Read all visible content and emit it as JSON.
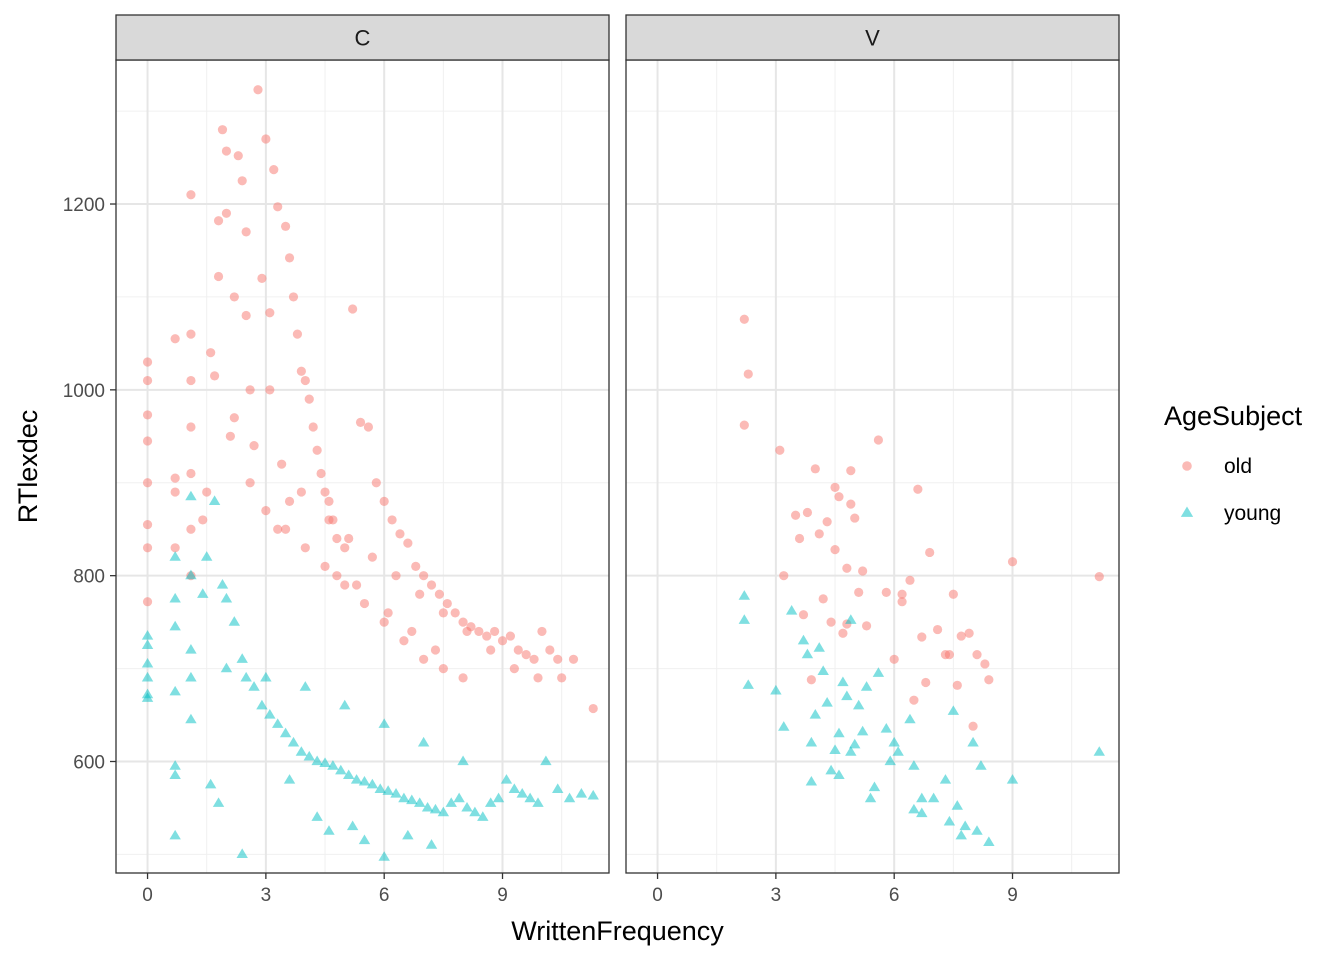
{
  "chart_data": {
    "type": "scatter",
    "xlabel": "WrittenFrequency",
    "ylabel": "RTlexdec",
    "facets": [
      "C",
      "V"
    ],
    "x_range": [
      -0.8,
      11.7
    ],
    "y_range": [
      480,
      1355
    ],
    "x_ticks": [
      0,
      3,
      6,
      9
    ],
    "y_ticks": [
      600,
      800,
      1000,
      1200
    ],
    "legend": {
      "title": "AgeSubject",
      "entries": [
        {
          "label": "old",
          "color": "#F8766D",
          "shape": "circle"
        },
        {
          "label": "young",
          "color": "#00BFC4",
          "shape": "triangle"
        }
      ],
      "position": "right"
    },
    "series": [
      {
        "name": "old",
        "facet": "C",
        "x": [
          0,
          0,
          0,
          0,
          0,
          0,
          0,
          0,
          0.7,
          0.7,
          0.7,
          0.7,
          1.1,
          1.1,
          1.1,
          1.1,
          1.1,
          1.1,
          1.1,
          1.4,
          1.6,
          1.7,
          1.8,
          1.8,
          1.9,
          2,
          2,
          2.2,
          2.3,
          2.4,
          2.5,
          2.5,
          2.6,
          2.8,
          2.9,
          3,
          3.1,
          3.1,
          3.2,
          3.3,
          3.5,
          3.6,
          3.7,
          3.8,
          3.9,
          4,
          4.1,
          4.2,
          4.3,
          4.4,
          4.5,
          4.6,
          4.7,
          4.8,
          5,
          5.2,
          5.4,
          5.6,
          5.8,
          6,
          6.2,
          6.4,
          6.6,
          6.8,
          7,
          7.2,
          7.4,
          7.6,
          7.8,
          8,
          8.2,
          8.4,
          8.6,
          8.8,
          9,
          9.2,
          9.4,
          9.6,
          9.8,
          10,
          10.2,
          10.4,
          10.5,
          10.8,
          11.3,
          1.5,
          2.2,
          2.7,
          3.4,
          3.9,
          4.6,
          5.1,
          5.7,
          6.3,
          6.9,
          7.5,
          8.1,
          8.7,
          9.3,
          9.9,
          2.6,
          3.0,
          3.5,
          4.0,
          4.5,
          5.0,
          5.5,
          6.0,
          6.5,
          7.0,
          7.5,
          8.0,
          3.3,
          4.8,
          6.1,
          7.3,
          2.1,
          3.6,
          5.3,
          6.7
        ],
        "y": [
          1030,
          1010,
          973,
          945,
          900,
          855,
          830,
          772,
          1055,
          905,
          890,
          830,
          1210,
          1060,
          1010,
          960,
          910,
          850,
          800,
          860,
          1040,
          1015,
          1122,
          1182,
          1280,
          1257,
          1190,
          1100,
          1252,
          1225,
          1170,
          1080,
          1000,
          1323,
          1120,
          1270,
          1083,
          1000,
          1237,
          1197,
          1176,
          1142,
          1100,
          1060,
          1020,
          1010,
          990,
          960,
          935,
          910,
          890,
          880,
          860,
          840,
          830,
          1087,
          965,
          960,
          900,
          880,
          860,
          845,
          835,
          810,
          800,
          790,
          780,
          770,
          760,
          750,
          745,
          740,
          735,
          740,
          730,
          735,
          720,
          715,
          710,
          740,
          720,
          710,
          690,
          710,
          657,
          890,
          970,
          940,
          920,
          890,
          860,
          840,
          820,
          800,
          780,
          760,
          740,
          720,
          700,
          690,
          900,
          870,
          850,
          830,
          810,
          790,
          770,
          750,
          730,
          710,
          700,
          690,
          850,
          800,
          760,
          720,
          950,
          880,
          790,
          740
        ]
      },
      {
        "name": "young",
        "facet": "C",
        "x": [
          0,
          0,
          0,
          0,
          0,
          0,
          0.7,
          0.7,
          0.7,
          0.7,
          0.7,
          0.7,
          1.1,
          1.1,
          1.1,
          1.1,
          1.1,
          1.4,
          1.5,
          1.7,
          1.9,
          2,
          2.2,
          2.4,
          2.5,
          2.7,
          2.9,
          3.1,
          3.3,
          3.5,
          3.7,
          3.9,
          4.1,
          4.3,
          4.5,
          4.7,
          4.9,
          5.1,
          5.3,
          5.5,
          5.7,
          5.9,
          6.1,
          6.3,
          6.5,
          6.7,
          6.9,
          7.1,
          7.3,
          7.5,
          7.7,
          7.9,
          8.1,
          8.3,
          8.5,
          8.7,
          8.9,
          9.1,
          9.3,
          9.5,
          9.7,
          9.9,
          10.1,
          10.4,
          10.7,
          11.0,
          11.3,
          2.4,
          1.8,
          1.6,
          0.7,
          2.0,
          3.0,
          4.0,
          5.0,
          6.0,
          7.0,
          8.0,
          5.2,
          6.0,
          7.2,
          4.3,
          3.6,
          6.6,
          5.5,
          4.6
        ],
        "y": [
          735,
          725,
          705,
          690,
          672,
          668,
          820,
          775,
          745,
          675,
          595,
          585,
          885,
          800,
          720,
          690,
          645,
          780,
          820,
          880,
          790,
          775,
          750,
          710,
          690,
          680,
          660,
          650,
          640,
          630,
          620,
          610,
          605,
          600,
          598,
          595,
          590,
          585,
          580,
          578,
          575,
          570,
          568,
          565,
          560,
          558,
          555,
          550,
          548,
          545,
          555,
          560,
          550,
          545,
          540,
          555,
          560,
          580,
          570,
          565,
          560,
          555,
          600,
          570,
          560,
          565,
          563,
          500,
          555,
          575,
          520,
          700,
          690,
          680,
          660,
          640,
          620,
          600,
          530,
          497,
          510,
          540,
          580,
          520,
          515,
          525
        ]
      },
      {
        "name": "old",
        "facet": "V",
        "x": [
          2.2,
          2.2,
          2.3,
          3.1,
          3.2,
          3.5,
          3.6,
          3.7,
          3.8,
          4,
          4.1,
          4.2,
          4.3,
          4.4,
          4.5,
          4.6,
          4.7,
          4.8,
          4.9,
          4.9,
          5.1,
          5.2,
          5.6,
          5.8,
          6,
          6.2,
          6.4,
          6.5,
          6.6,
          6.8,
          6.9,
          7.3,
          7.5,
          7.6,
          7.7,
          7.9,
          8.1,
          8.3,
          8.4,
          9,
          11.2,
          4.5,
          5.0,
          6.2,
          7.1,
          3.9,
          5.3,
          6.7,
          7.4,
          8.0,
          4.8
        ],
        "y": [
          1076,
          962,
          1017,
          935,
          800,
          865,
          840,
          758,
          868,
          915,
          845,
          775,
          858,
          750,
          895,
          885,
          738,
          808,
          913,
          877,
          782,
          805,
          946,
          782,
          710,
          780,
          795,
          666,
          893,
          685,
          825,
          715,
          780,
          682,
          735,
          738,
          715,
          705,
          688,
          815,
          799,
          828,
          862,
          772,
          742,
          688,
          746,
          734,
          715,
          638,
          748
        ]
      },
      {
        "name": "young",
        "facet": "V",
        "x": [
          2.2,
          2.2,
          2.3,
          3,
          3.2,
          3.4,
          3.7,
          3.8,
          3.9,
          4,
          4.1,
          4.2,
          4.3,
          4.4,
          4.5,
          4.6,
          4.7,
          4.8,
          4.9,
          5,
          5.1,
          5.2,
          5.3,
          5.5,
          5.6,
          5.8,
          6,
          6.1,
          6.4,
          6.5,
          6.7,
          7,
          7.3,
          7.5,
          7.6,
          7.8,
          8,
          8.2,
          8.4,
          9,
          11.2,
          6.5,
          6.7,
          7.4,
          7.7,
          8.1,
          4.9,
          5.9,
          3.9,
          4.6,
          5.4
        ],
        "y": [
          778,
          752,
          682,
          676,
          637,
          762,
          730,
          715,
          578,
          650,
          722,
          697,
          663,
          590,
          612,
          630,
          685,
          670,
          752,
          618,
          660,
          632,
          680,
          572,
          695,
          635,
          620,
          610,
          645,
          595,
          560,
          560,
          580,
          654,
          552,
          530,
          620,
          595,
          513,
          580,
          610,
          548,
          544,
          535,
          520,
          525,
          610,
          600,
          620,
          585,
          560
        ]
      }
    ]
  }
}
